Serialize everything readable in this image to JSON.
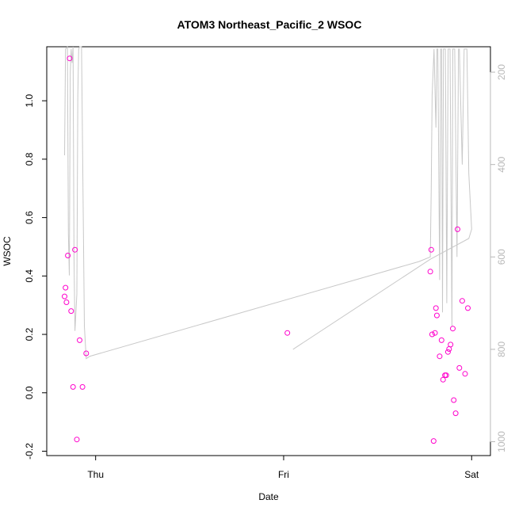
{
  "chart_data": {
    "type": "scatter",
    "title": "ATOM3 Northeast_Pacific_2 WSOC",
    "xlabel": "Date",
    "ylabel": "WSOC",
    "x_ticks": [
      "Thu",
      "Fri",
      "Sat"
    ],
    "y_ticks": [
      "-0.2",
      "0.0",
      "0.2",
      "0.4",
      "0.6",
      "0.8",
      "1.0"
    ],
    "y_right_ticks": [
      "200",
      "400",
      "600",
      "800",
      "1000"
    ],
    "xlim_days": [
      -0.26,
      2.1
    ],
    "ylim": [
      -0.215,
      1.185
    ],
    "y_right_lim": [
      1030,
      145
    ],
    "colors": {
      "points": "#ff00cc",
      "pressure_line": "#c8c8c8",
      "right_axis": "#b8b8b8"
    },
    "series": [
      {
        "marker": "circle",
        "x_days": [
          -0.165,
          -0.16,
          -0.155,
          -0.148,
          -0.138,
          -0.13,
          -0.12,
          -0.11,
          -0.1,
          -0.085,
          -0.07,
          -0.05,
          1.02,
          1.78,
          1.785,
          1.79,
          1.798,
          1.805,
          1.81,
          1.815,
          1.83,
          1.84,
          1.848,
          1.858,
          1.865,
          1.874,
          1.88,
          1.888,
          1.9,
          1.905,
          1.915,
          1.925,
          1.935,
          1.95,
          1.965,
          1.98
        ],
        "y": [
          0.33,
          0.36,
          0.31,
          0.47,
          1.145,
          0.28,
          0.02,
          0.49,
          -0.16,
          0.18,
          0.02,
          0.135,
          0.205,
          0.415,
          0.49,
          0.2,
          -0.165,
          0.205,
          0.29,
          0.265,
          0.125,
          0.18,
          0.045,
          0.06,
          0.06,
          0.14,
          0.15,
          0.165,
          0.22,
          -0.025,
          -0.07,
          0.56,
          0.085,
          0.315,
          0.065,
          0.29
        ]
      },
      {
        "name_hidden": "pressure",
        "style": "line",
        "x_days": [
          -0.165,
          -0.155,
          -0.145,
          -0.135,
          -0.125,
          -0.115,
          -0.105,
          -0.095,
          -0.085,
          -0.075,
          -0.06,
          -0.05,
          1.0,
          1.78,
          1.785,
          1.79,
          1.8,
          1.81,
          1.82,
          1.83,
          1.84,
          1.85,
          1.86,
          1.875,
          1.885,
          1.895,
          1.905,
          1.915,
          1.925,
          1.935,
          1.94,
          1.95,
          1.96,
          1.975,
          1.99,
          2.0
        ],
        "y_pressure": [
          180,
          150,
          640,
          150,
          120,
          150,
          800,
          150,
          150,
          100,
          800,
          820,
          600,
          600,
          250,
          150,
          300,
          150,
          220,
          150,
          700,
          150,
          300,
          150,
          800,
          150,
          700,
          150,
          400,
          150,
          650,
          560,
          200,
          150,
          400,
          600
        ],
        "path_pressure": [
          [
            -0.165,
            380
          ],
          [
            -0.16,
            150
          ],
          [
            -0.15,
            130
          ],
          [
            -0.145,
            550
          ],
          [
            -0.14,
            640
          ],
          [
            -0.135,
            200
          ],
          [
            -0.13,
            150
          ],
          [
            -0.125,
            180
          ],
          [
            -0.12,
            130
          ],
          [
            -0.115,
            600
          ],
          [
            -0.11,
            760
          ],
          [
            -0.1,
            680
          ],
          [
            -0.095,
            250
          ],
          [
            -0.09,
            150
          ],
          [
            -0.085,
            110
          ],
          [
            -0.075,
            130
          ],
          [
            -0.06,
            750
          ],
          [
            -0.05,
            820
          ],
          [
            -0.03,
            815
          ],
          [
            1.72,
            610
          ],
          [
            1.78,
            600
          ],
          [
            1.785,
            450
          ],
          [
            1.79,
            250
          ],
          [
            1.8,
            150
          ],
          [
            1.81,
            320
          ],
          [
            1.815,
            150
          ],
          [
            1.82,
            150
          ],
          [
            1.83,
            650
          ],
          [
            1.835,
            150
          ],
          [
            1.84,
            150
          ],
          [
            1.845,
            720
          ],
          [
            1.85,
            150
          ],
          [
            1.86,
            150
          ],
          [
            1.868,
            700
          ],
          [
            1.875,
            150
          ],
          [
            1.885,
            150
          ],
          [
            1.895,
            750
          ],
          [
            1.9,
            150
          ],
          [
            1.91,
            150
          ],
          [
            1.922,
            600
          ],
          [
            1.93,
            150
          ],
          [
            1.935,
            150
          ],
          [
            1.95,
            400
          ],
          [
            1.96,
            150
          ],
          [
            1.975,
            150
          ],
          [
            1.985,
            420
          ],
          [
            2.0,
            540
          ],
          [
            1.985,
            560
          ],
          [
            1.78,
            605
          ],
          [
            1.05,
            800
          ]
        ]
      }
    ],
    "grid": false,
    "legend": "none"
  }
}
